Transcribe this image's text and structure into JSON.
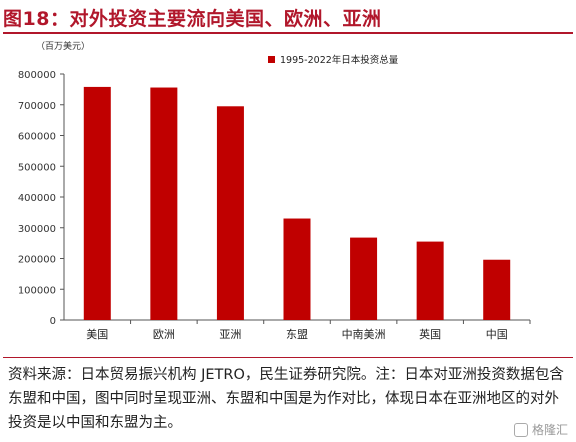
{
  "title": "图18：对外投资主要流向美国、欧洲、亚洲",
  "unit_label": "（百万美元）",
  "source_note": "资料来源：日本贸易振兴机构 JETRO，民生证券研究院。注：日本对亚洲投资数据包含东盟和中国，图中同时呈现亚洲、东盟和中国是为作对比，体现日本在亚洲地区的对外投资是以中国和东盟为主。",
  "watermark": "格隆汇",
  "colors": {
    "bar": "#c00000",
    "title": "#b1172b"
  },
  "chart_data": {
    "type": "bar",
    "categories": [
      "美国",
      "欧洲",
      "亚洲",
      "东盟",
      "中南美洲",
      "英国",
      "中国"
    ],
    "series": [
      {
        "name": "1995-2022年日本投资总量",
        "values": [
          758000,
          756000,
          695000,
          330000,
          268000,
          255000,
          196000
        ]
      }
    ],
    "ylim": [
      0,
      800000
    ],
    "yticks": [
      0,
      100000,
      200000,
      300000,
      400000,
      500000,
      600000,
      700000,
      800000
    ],
    "ytick_labels": [
      "0",
      "100000",
      "200000",
      "300000",
      "400000",
      "500000",
      "600000",
      "700000",
      "800000"
    ],
    "legend_position": "top-right",
    "grid": false
  }
}
